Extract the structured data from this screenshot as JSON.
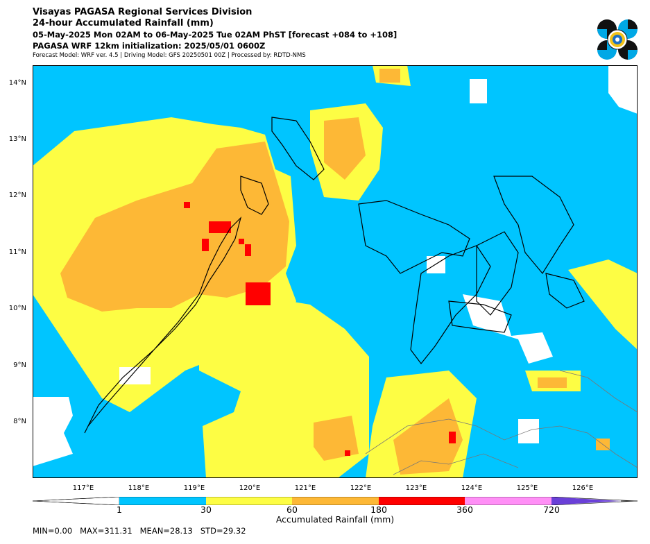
{
  "header": {
    "line1": "Visayas PAGASA Regional Services Division",
    "line2": "24-hour Accumulated Rainfall (mm)",
    "line3": "05-May-2025 Mon 02AM to 06-May-2025 Tue 02AM PhST [forecast +084 to +108]",
    "line4": "PAGASA WRF 12km initialization: 2025/05/01 0600Z",
    "line5": "Forecast Model: WRF ver. 4.5 | Driving Model: GFS 20250501 00Z | Processed by: RDTD-NMS"
  },
  "map": {
    "lat_labels": [
      "14°N",
      "13°N",
      "12°N",
      "11°N",
      "10°N",
      "9°N",
      "8°N"
    ],
    "lon_labels": [
      "117°E",
      "118°E",
      "119°E",
      "120°E",
      "121°E",
      "122°E",
      "123°E",
      "124°E",
      "125°E",
      "126°E"
    ],
    "colors": {
      "none": "#ffffff",
      "light": "#00c5ff",
      "moderate": "#fdfd44",
      "heavy": "#fdb836",
      "intense": "#ff0000",
      "torrential": "#ff8ff6",
      "extreme": "#6a40d8"
    }
  },
  "colorbar": {
    "ticks": [
      "1",
      "30",
      "60",
      "180",
      "360",
      "720"
    ],
    "label": "Accumulated Rainfall (mm)"
  },
  "stats": "MIN=0.00   MAX=311.31   MEAN=28.13   STD=29.32"
}
